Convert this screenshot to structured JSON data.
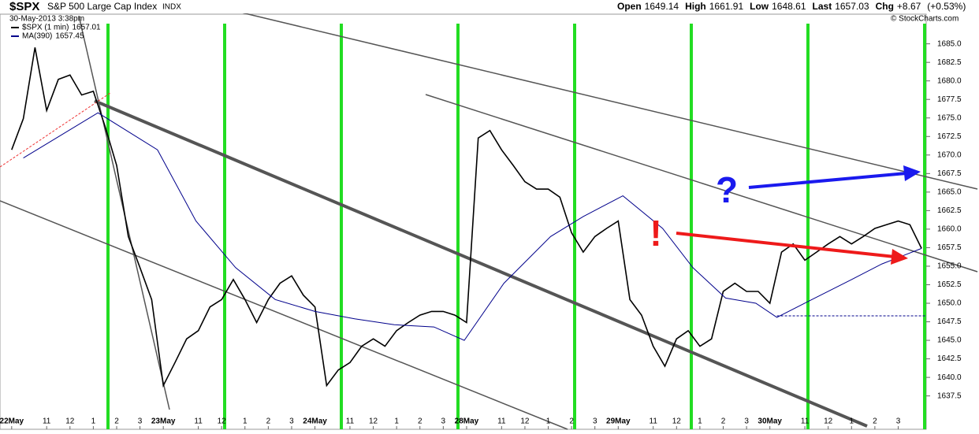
{
  "chart_data": {
    "type": "line",
    "title": "$SPX",
    "subtitle": "S&P 500 Large Cap Index",
    "exchange": "INDX",
    "date": "30-May-2013 3:38pm",
    "quote": [
      {
        "label": "Open",
        "value": 1649.14
      },
      {
        "label": "High",
        "value": 1661.91
      },
      {
        "label": "Low",
        "value": 1648.61
      },
      {
        "label": "Last",
        "value": 1657.03
      }
    ],
    "change": {
      "label": "Chg",
      "value": 8.67,
      "value_label": "+8.67",
      "pct": 0.53,
      "pct_label": "(+0.53%)"
    },
    "credit": "© StockCharts.com",
    "annotations": [
      "?",
      "!"
    ],
    "xlim": [
      -0.5,
      39.2
    ],
    "xticks": [
      {
        "value": 0,
        "label": "22May"
      },
      {
        "value": 1.5,
        "label": "11"
      },
      {
        "value": 2.5,
        "label": "12"
      },
      {
        "value": 3.5,
        "label": "1"
      },
      {
        "value": 4.5,
        "label": "2"
      },
      {
        "value": 5.5,
        "label": "3"
      },
      {
        "value": 6.5,
        "label": "23May"
      },
      {
        "value": 8,
        "label": "11"
      },
      {
        "value": 9,
        "label": "12"
      },
      {
        "value": 10,
        "label": "1"
      },
      {
        "value": 11,
        "label": "2"
      },
      {
        "value": 12,
        "label": "3"
      },
      {
        "value": 13,
        "label": "24May"
      },
      {
        "value": 14.5,
        "label": "11"
      },
      {
        "value": 15.5,
        "label": "12"
      },
      {
        "value": 16.5,
        "label": "1"
      },
      {
        "value": 17.5,
        "label": "2"
      },
      {
        "value": 18.5,
        "label": "3"
      },
      {
        "value": 19.5,
        "label": "28May"
      },
      {
        "value": 21,
        "label": "11"
      },
      {
        "value": 22,
        "label": "12"
      },
      {
        "value": 23,
        "label": "1"
      },
      {
        "value": 24,
        "label": "2"
      },
      {
        "value": 25,
        "label": "3"
      },
      {
        "value": 26,
        "label": "29May"
      },
      {
        "value": 27.5,
        "label": "11"
      },
      {
        "value": 28.5,
        "label": "12"
      },
      {
        "value": 29.5,
        "label": "1"
      },
      {
        "value": 30.5,
        "label": "2"
      },
      {
        "value": 31.5,
        "label": "3"
      },
      {
        "value": 32.5,
        "label": "30May"
      },
      {
        "value": 34,
        "label": "11"
      },
      {
        "value": 35,
        "label": "12"
      },
      {
        "value": 36,
        "label": "1"
      },
      {
        "value": 37,
        "label": "2"
      },
      {
        "value": 38,
        "label": "3"
      }
    ],
    "ylim": [
      1633,
      1689
    ],
    "yticks": [
      1637.5,
      {
        "value": 1640,
        "label": "1640.0"
      },
      1642.5,
      {
        "value": 1645,
        "label": "1645.0"
      },
      1647.5,
      {
        "value": 1650,
        "label": "1650.0"
      },
      1652.5,
      {
        "value": 1655,
        "label": "1655.0"
      },
      1657.5,
      {
        "value": 1660,
        "label": "1660.0"
      },
      1662.5,
      {
        "value": 1665,
        "label": "1665.0"
      },
      1667.5,
      {
        "value": 1670,
        "label": "1670.0"
      },
      1672.5,
      {
        "value": 1675,
        "label": "1675.0"
      },
      1677.5,
      {
        "value": 1680,
        "label": "1680.0"
      },
      1682.5,
      {
        "value": 1685,
        "label": "1685.0"
      }
    ],
    "hline": {
      "value": 1648.3,
      "from": 32.8
    },
    "series": [
      {
        "name": "$SPX (1 min)",
        "last": 1657.01,
        "color": "#000000",
        "x": [
          0,
          0.5,
          1,
          1.5,
          2,
          2.5,
          3,
          3.5,
          4,
          4.5,
          5,
          5.5,
          6,
          6.5,
          7,
          7.5,
          8,
          8.5,
          9,
          9.5,
          10,
          10.5,
          11,
          11.5,
          12,
          12.5,
          13,
          13.5,
          14,
          14.5,
          15,
          15.5,
          16,
          16.5,
          17,
          17.5,
          18,
          18.5,
          19,
          19.5,
          20,
          20.5,
          21,
          21.5,
          22,
          22.5,
          23,
          23.5,
          24,
          24.5,
          25,
          25.5,
          26,
          26.5,
          27,
          27.5,
          28,
          28.5,
          29,
          29.5,
          30,
          30.5,
          31,
          31.5,
          32,
          32.5,
          33,
          33.5,
          34,
          34.5,
          35,
          35.5,
          36,
          36.5,
          37,
          37.5,
          38,
          38.5,
          39
        ],
        "values": [
          1670.7,
          1674.9,
          1684.5,
          1676,
          1680.2,
          1680.8,
          1678.1,
          1678.6,
          1673.9,
          1668.6,
          1659,
          1654.8,
          1650.5,
          1638.9,
          1642,
          1645.2,
          1646.3,
          1649.5,
          1650.5,
          1653.2,
          1650.5,
          1647.4,
          1650.5,
          1652.7,
          1653.7,
          1651.1,
          1649.5,
          1638.9,
          1641,
          1642,
          1644.2,
          1645.2,
          1644.2,
          1646.3,
          1647.4,
          1648.4,
          1648.9,
          1648.9,
          1648.4,
          1647.4,
          1672.3,
          1673.3,
          1670.7,
          1668.6,
          1666.4,
          1665.4,
          1665.4,
          1664.3,
          1659.5,
          1656.9,
          1659,
          1660.1,
          1661.1,
          1650.5,
          1648.4,
          1644.2,
          1641.5,
          1645.2,
          1646.3,
          1644.2,
          1645.2,
          1651.6,
          1652.7,
          1651.6,
          1651.6,
          1650,
          1656.9,
          1658,
          1655.8,
          1656.9,
          1658,
          1659,
          1658,
          1659,
          1660.1,
          1660.6,
          1661.1,
          1660.6,
          1657.4
        ]
      },
      {
        "name": "MA(390)",
        "last": 1657.45,
        "color": "#00008b",
        "x": [
          0.5,
          3.7,
          6.25,
          7.9,
          9.6,
          11.3,
          13,
          14.7,
          16.4,
          18.1,
          19.4,
          21.1,
          23.1,
          24.5,
          26.2,
          27.9,
          29.2,
          30.6,
          31.9,
          32.8,
          34.3,
          36,
          37.3,
          39
        ],
        "values": [
          1669.6,
          1675.7,
          1670.7,
          1661.1,
          1654.8,
          1650.5,
          1648.9,
          1647.9,
          1647.1,
          1646.8,
          1645,
          1652.7,
          1659,
          1661.7,
          1664.5,
          1660.1,
          1654.8,
          1650.7,
          1650,
          1648.1,
          1650.5,
          1653.2,
          1655.3,
          1657.4
        ]
      }
    ]
  }
}
